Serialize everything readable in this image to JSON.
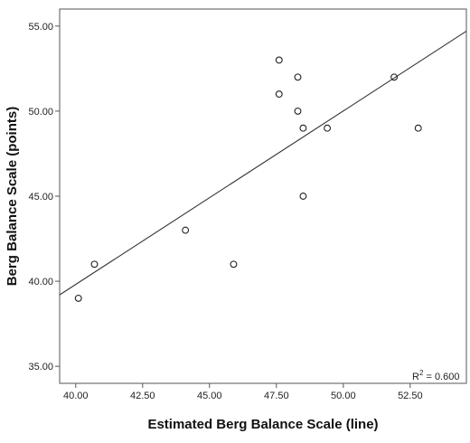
{
  "chart_data": {
    "type": "scatter",
    "title": "",
    "xlabel": "Estimated Berg Balance Scale (line)",
    "ylabel": "Berg Balance Scale (points)",
    "xlim": [
      39.4,
      54.6
    ],
    "ylim": [
      34.0,
      56.0
    ],
    "x_ticks": [
      "40.00",
      "42.50",
      "45.00",
      "47.50",
      "50.00",
      "52.50"
    ],
    "y_ticks": [
      "35.00",
      "40.00",
      "45.00",
      "50.00",
      "55.00"
    ],
    "grid": false,
    "legend": "none",
    "points": [
      {
        "x": 40.1,
        "y": 39
      },
      {
        "x": 40.7,
        "y": 41
      },
      {
        "x": 44.1,
        "y": 43
      },
      {
        "x": 45.9,
        "y": 41
      },
      {
        "x": 47.6,
        "y": 53
      },
      {
        "x": 47.6,
        "y": 51
      },
      {
        "x": 48.3,
        "y": 52
      },
      {
        "x": 48.3,
        "y": 50
      },
      {
        "x": 48.5,
        "y": 49
      },
      {
        "x": 48.5,
        "y": 45
      },
      {
        "x": 49.4,
        "y": 49
      },
      {
        "x": 51.9,
        "y": 52
      },
      {
        "x": 52.8,
        "y": 49
      }
    ],
    "fit_line": {
      "x": [
        39.4,
        54.6
      ],
      "y": [
        39.2,
        54.7
      ]
    },
    "annotation": {
      "prefix": "R",
      "superscript": "2",
      "text": " = 0.600"
    },
    "colors": {
      "marker_stroke": "#222222",
      "line": "#333333",
      "axis": "#555555"
    }
  }
}
